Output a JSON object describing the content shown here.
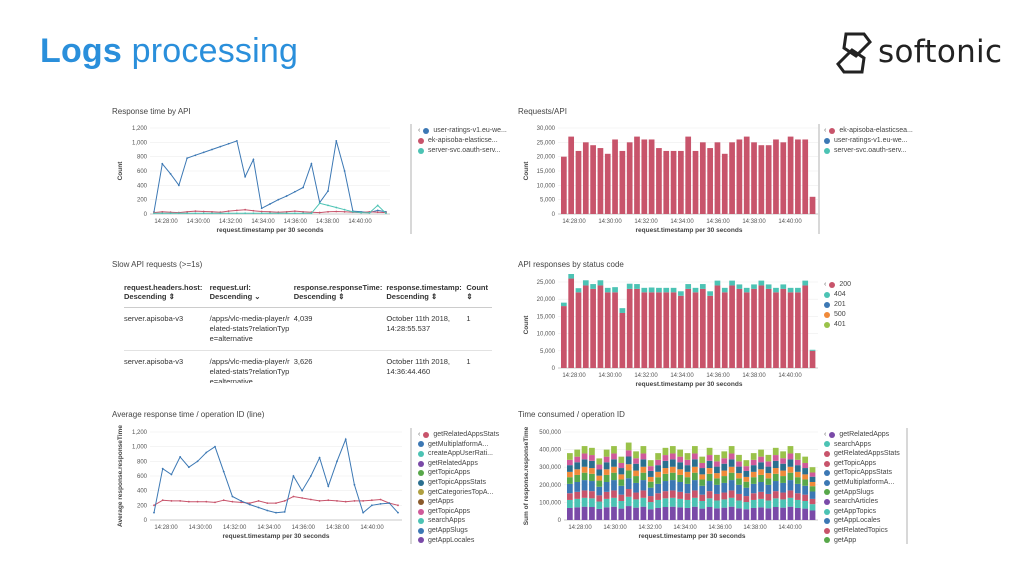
{
  "slide": {
    "title_bold": "Logs",
    "title_rest": "processing",
    "brand": "softonic"
  },
  "colors": {
    "accent": "#2a8fdb",
    "bar": "#c8546b"
  },
  "panels": {
    "response_time": {
      "title": "Response time by API",
      "ylabel": "Count",
      "xlabel": "request.timestamp per 30 seconds",
      "yticks": [
        "0",
        "200",
        "400",
        "600",
        "800",
        "1,000",
        "1,200"
      ],
      "xticks": [
        "14:28:00",
        "14:30:00",
        "14:32:00",
        "14:34:00",
        "14:36:00",
        "14:38:00",
        "14:40:00"
      ],
      "legend": [
        {
          "label": "user-ratings-v1.eu-we...",
          "color": "#3c78b4"
        },
        {
          "label": "ek-apisoba-elasticse...",
          "color": "#c8546b"
        },
        {
          "label": "server-svc.oauth-serv...",
          "color": "#4cc3b4"
        }
      ]
    },
    "requests_api": {
      "title": "Requests/API",
      "ylabel": "Count",
      "xlabel": "request.timestamp per 30 seconds",
      "yticks": [
        "0",
        "5,000",
        "10,000",
        "15,000",
        "20,000",
        "25,000",
        "30,000"
      ],
      "xticks": [
        "14:28:00",
        "14:30:00",
        "14:32:00",
        "14:34:00",
        "14:36:00",
        "14:38:00",
        "14:40:00"
      ],
      "legend": [
        {
          "label": "ek-apisoba-elasticsea...",
          "color": "#c8546b"
        },
        {
          "label": "user-ratings-v1.eu-we...",
          "color": "#3c78b4"
        },
        {
          "label": "server-svc.oauth-serv...",
          "color": "#4cc3b4"
        }
      ]
    },
    "slow_requests": {
      "title": "Slow API requests (>=1s)",
      "headers": [
        {
          "name": "request.headers.host:",
          "sort": "Descending ⇕"
        },
        {
          "name": "request.url:",
          "sort": "Descending ⌄"
        },
        {
          "name": "response.responseTime:",
          "sort": "Descending ⇕"
        },
        {
          "name": "response.timestamp:",
          "sort": "Descending ⇕"
        },
        {
          "name": "Count",
          "sort": "⇕"
        }
      ],
      "rows": [
        {
          "host": "server.apisoba-v3",
          "url": "/apps/vlc-media-player/related-stats?relationType=alternative",
          "time": "4,039",
          "ts": "October 11th 2018, 14:28:55.537",
          "count": "1"
        },
        {
          "host": "server.apisoba-v3",
          "url": "/apps/vlc-media-player/related-stats?relationType=alternative",
          "time": "3,626",
          "ts": "October 11th 2018, 14:36:44.460",
          "count": "1"
        }
      ]
    },
    "status_code": {
      "title": "API responses by status code",
      "ylabel": "Count",
      "xlabel": "request.timestamp per 30 seconds",
      "yticks": [
        "0",
        "5,000",
        "10,000",
        "15,000",
        "20,000",
        "25,000"
      ],
      "xticks": [
        "14:28:00",
        "14:30:00",
        "14:32:00",
        "14:34:00",
        "14:36:00",
        "14:38:00",
        "14:40:00"
      ],
      "legend": [
        {
          "label": "200",
          "color": "#c8546b"
        },
        {
          "label": "404",
          "color": "#4cc3b4"
        },
        {
          "label": "201",
          "color": "#3c78b4"
        },
        {
          "label": "500",
          "color": "#f08a3a"
        },
        {
          "label": "401",
          "color": "#9ac24a"
        }
      ]
    },
    "avg_response": {
      "title": "Average response time / operation ID (line)",
      "ylabel": "Average response.responseTime",
      "xlabel": "request.timestamp per 30 seconds",
      "yticks": [
        "0",
        "200",
        "400",
        "600",
        "800",
        "1,000",
        "1,200"
      ],
      "xticks": [
        "14:28:00",
        "14:30:00",
        "14:32:00",
        "14:34:00",
        "14:36:00",
        "14:38:00",
        "14:40:00"
      ],
      "legend": [
        {
          "label": "getRelatedAppsStats",
          "color": "#c8546b"
        },
        {
          "label": "getMultiplatformA...",
          "color": "#3c78b4"
        },
        {
          "label": "createAppUserRati...",
          "color": "#4cc3b4"
        },
        {
          "label": "getRelatedApps",
          "color": "#7a4aa8"
        },
        {
          "label": "getTopicApps",
          "color": "#58a84a"
        },
        {
          "label": "getTopicAppsStats",
          "color": "#2a6f8f"
        },
        {
          "label": "getCategoriesTopA...",
          "color": "#b0a040"
        },
        {
          "label": "getApps",
          "color": "#8a5a2a"
        },
        {
          "label": "getTopicApps",
          "color": "#d05a9a"
        },
        {
          "label": "searchApps",
          "color": "#4cc3b4"
        },
        {
          "label": "getAppSlugs",
          "color": "#3c78b4"
        },
        {
          "label": "getAppLocales",
          "color": "#7a4aa8"
        }
      ]
    },
    "time_consumed": {
      "title": "Time consumed / operation ID",
      "ylabel": "Sum of response.responseTime",
      "xlabel": "request.timestamp per 30 seconds",
      "yticks": [
        "0",
        "100,000",
        "200,000",
        "300,000",
        "400,000",
        "500,000"
      ],
      "xticks": [
        "14:28:00",
        "14:30:00",
        "14:32:00",
        "14:34:00",
        "14:36:00",
        "14:38:00",
        "14:40:00"
      ],
      "legend": [
        {
          "label": "getRelatedApps",
          "color": "#7a4aa8"
        },
        {
          "label": "searchApps",
          "color": "#4cc3b4"
        },
        {
          "label": "getRelatedAppsStats",
          "color": "#c8546b"
        },
        {
          "label": "getTopicApps",
          "color": "#c8546b"
        },
        {
          "label": "getTopicAppsStats",
          "color": "#3c78b4"
        },
        {
          "label": "getMultiplatformA...",
          "color": "#3c78b4"
        },
        {
          "label": "getAppSlugs",
          "color": "#58a84a"
        },
        {
          "label": "searchArticles",
          "color": "#7a4aa8"
        },
        {
          "label": "getAppTopics",
          "color": "#4cc3b4"
        },
        {
          "label": "getAppLocales",
          "color": "#3c78b4"
        },
        {
          "label": "getRelatedTopics",
          "color": "#c8546b"
        },
        {
          "label": "getApp",
          "color": "#58a84a"
        }
      ]
    }
  },
  "chart_data": [
    {
      "type": "line",
      "title": "Response time by API",
      "xlabel": "request.timestamp per 30 seconds",
      "ylabel": "Count",
      "ylim": [
        0,
        1200
      ],
      "series": [
        {
          "name": "user-ratings-v1.eu-we...",
          "values": [
            30,
            700,
            560,
            400,
            780,
            820,
            860,
            900,
            940,
            980,
            1020,
            520,
            760,
            80,
            140,
            200,
            250,
            310,
            370,
            700,
            160,
            320,
            1020,
            600,
            40,
            30,
            20,
            50,
            30
          ]
        },
        {
          "name": "ek-apisoba-elasticse...",
          "values": [
            20,
            30,
            25,
            20,
            30,
            40,
            35,
            30,
            25,
            40,
            50,
            60,
            45,
            35,
            30,
            25,
            30,
            40,
            30,
            25,
            20,
            30,
            35,
            30,
            25,
            20,
            30,
            25,
            20
          ]
        },
        {
          "name": "server-svc.oauth-serv...",
          "values": [
            10,
            10,
            10,
            10,
            10,
            10,
            10,
            10,
            10,
            10,
            10,
            10,
            10,
            10,
            10,
            10,
            10,
            10,
            10,
            10,
            150,
            120,
            90,
            60,
            30,
            20,
            15,
            120,
            10
          ]
        }
      ]
    },
    {
      "type": "bar",
      "title": "Requests/API",
      "xlabel": "request.timestamp per 30 seconds",
      "ylabel": "Count",
      "ylim": [
        0,
        30000
      ],
      "series": [
        {
          "name": "ek-apisoba-elasticsea...",
          "values": [
            20000,
            27000,
            22000,
            25000,
            24000,
            23000,
            21000,
            26000,
            22000,
            25000,
            27000,
            26000,
            26000,
            23000,
            22000,
            22000,
            22000,
            27000,
            22000,
            25000,
            23000,
            25000,
            21000,
            25000,
            26000,
            27000,
            25000,
            24000,
            24000,
            26000,
            25000,
            27000,
            26000,
            26000,
            6000
          ]
        }
      ]
    },
    {
      "type": "bar",
      "title": "API responses by status code",
      "xlabel": "request.timestamp per 30 seconds",
      "ylabel": "Count",
      "ylim": [
        0,
        25000
      ],
      "series": [
        {
          "name": "200",
          "values": [
            18000,
            26000,
            22000,
            24000,
            23000,
            24000,
            22000,
            22000,
            16000,
            23000,
            23000,
            22000,
            22000,
            22000,
            22000,
            22000,
            21000,
            23000,
            22000,
            23000,
            21000,
            24000,
            22000,
            24000,
            23000,
            22000,
            23000,
            24000,
            23000,
            22000,
            23000,
            22000,
            22000,
            24000,
            5000
          ]
        },
        {
          "name": "404",
          "values": [
            1000,
            1500,
            1200,
            1500,
            1400,
            1500,
            1300,
            1500,
            1400,
            1500,
            1400,
            1300,
            1400,
            1300,
            1300,
            1300,
            1300,
            1400,
            1300,
            1400,
            1300,
            1400,
            1300,
            1400,
            1300,
            1300,
            1300,
            1400,
            1300,
            1300,
            1300,
            1300,
            1300,
            1400,
            300
          ]
        }
      ]
    },
    {
      "type": "line",
      "title": "Average response time / operation ID (line)",
      "xlabel": "request.timestamp per 30 seconds",
      "ylabel": "Average response.responseTime",
      "ylim": [
        0,
        1200
      ],
      "series": [
        {
          "name": "getRelatedAppsStats",
          "values": [
            200,
            270,
            260,
            260,
            250,
            250,
            250,
            240,
            270,
            250,
            240,
            230,
            260,
            230,
            230,
            260,
            320,
            300,
            280,
            260,
            270,
            260,
            250,
            260,
            260,
            270,
            280,
            230,
            200
          ]
        },
        {
          "name": "getTopicApps",
          "values": [
            100,
            700,
            620,
            860,
            720,
            800,
            920,
            1000,
            660,
            320,
            260,
            210,
            170,
            130,
            100,
            110,
            600,
            400,
            600,
            850,
            460,
            800,
            1100,
            480,
            100,
            200,
            220,
            230,
            100
          ]
        }
      ]
    },
    {
      "type": "bar",
      "title": "Time consumed / operation ID",
      "xlabel": "request.timestamp per 30 seconds",
      "ylabel": "Sum of response.responseTime",
      "ylim": [
        0,
        500000
      ],
      "series": [
        {
          "name": "total",
          "values": [
            380000,
            400000,
            420000,
            410000,
            350000,
            400000,
            420000,
            360000,
            440000,
            390000,
            420000,
            340000,
            380000,
            410000,
            420000,
            400000,
            380000,
            420000,
            360000,
            410000,
            370000,
            390000,
            420000,
            370000,
            340000,
            380000,
            400000,
            370000,
            410000,
            390000,
            420000,
            380000,
            360000,
            300000
          ]
        }
      ]
    }
  ]
}
